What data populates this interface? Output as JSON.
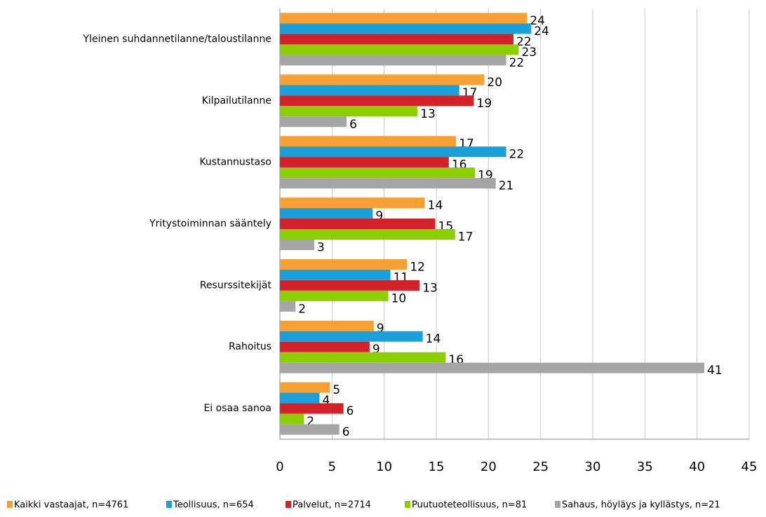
{
  "chart_data": {
    "type": "bar",
    "orientation": "horizontal",
    "categories": [
      "Yleinen suhdannetilanne/taloustilanne",
      "Kilpailutilanne",
      "Kustannustaso",
      "Yritystoiminnan sääntely",
      "Resurssitekijät",
      "Rahoitus",
      "Ei osaa sanoa"
    ],
    "series": [
      {
        "name": "Kaikki vastaajat, n=4761",
        "color": "#f7a035",
        "values": [
          23.7,
          19.6,
          16.9,
          13.9,
          12.2,
          9.0,
          4.8
        ],
        "value_labels": [
          "24",
          "20",
          "17",
          "14",
          "12",
          "9",
          "5"
        ]
      },
      {
        "name": "Teollisuus, n=654",
        "color": "#1aa0db",
        "values": [
          24.1,
          17.2,
          21.7,
          8.9,
          10.6,
          13.7,
          3.8
        ],
        "value_labels": [
          "24",
          "17",
          "22",
          "9",
          "11",
          "14",
          "4"
        ]
      },
      {
        "name": "Palvelut, n=2714",
        "color": "#d2232a",
        "values": [
          22.4,
          18.6,
          16.2,
          14.9,
          13.4,
          8.6,
          6.1
        ],
        "value_labels": [
          "22",
          "19",
          "16",
          "15",
          "13",
          "9",
          "6"
        ]
      },
      {
        "name": "Puutuoteteollisuus, n=81",
        "color": "#8ccf00",
        "values": [
          22.9,
          13.2,
          18.7,
          16.8,
          10.4,
          15.9,
          2.3
        ],
        "value_labels": [
          "23",
          "13",
          "19",
          "17",
          "10",
          "16",
          "2"
        ]
      },
      {
        "name": "Sahaus, höyläys ja kyllästys, n=21",
        "color": "#a6a6a6",
        "values": [
          21.7,
          6.4,
          20.7,
          3.3,
          1.5,
          40.7,
          5.7
        ],
        "value_labels": [
          "22",
          "6",
          "21",
          "3",
          "2",
          "41",
          "6"
        ]
      }
    ],
    "xlim": [
      0,
      45
    ],
    "xticks": [
      0,
      5,
      10,
      15,
      20,
      25,
      30,
      35,
      40,
      45
    ],
    "grid": true,
    "legend": "bottom"
  }
}
